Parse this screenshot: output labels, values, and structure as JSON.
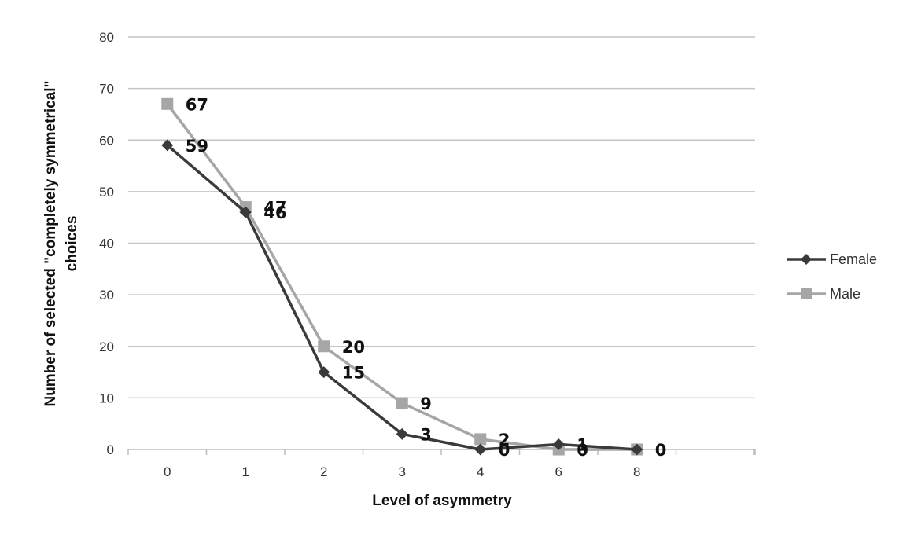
{
  "chart_data": {
    "type": "line",
    "title": "",
    "xlabel": "Level of asymmetry",
    "ylabel_lines": [
      "Number of selected \"completely symmetrical\"",
      "choices"
    ],
    "categories": [
      "0",
      "1",
      "2",
      "3",
      "4",
      "6",
      "8"
    ],
    "ylim": [
      0,
      80
    ],
    "ytick_step": 10,
    "grid": true,
    "legend_position": "right",
    "series": [
      {
        "name": "Female",
        "values": [
          59,
          46,
          15,
          3,
          0,
          1,
          0
        ],
        "labels": [
          "59",
          "46",
          "15",
          "3",
          "0",
          "1",
          ""
        ],
        "color": "#3a3a3a",
        "marker": "diamond"
      },
      {
        "name": "Male",
        "values": [
          67,
          47,
          20,
          9,
          2,
          0,
          0
        ],
        "labels": [
          "67",
          "47",
          "20",
          "9",
          "2",
          "0",
          "0"
        ],
        "color": "#a6a6a6",
        "marker": "square"
      }
    ]
  }
}
